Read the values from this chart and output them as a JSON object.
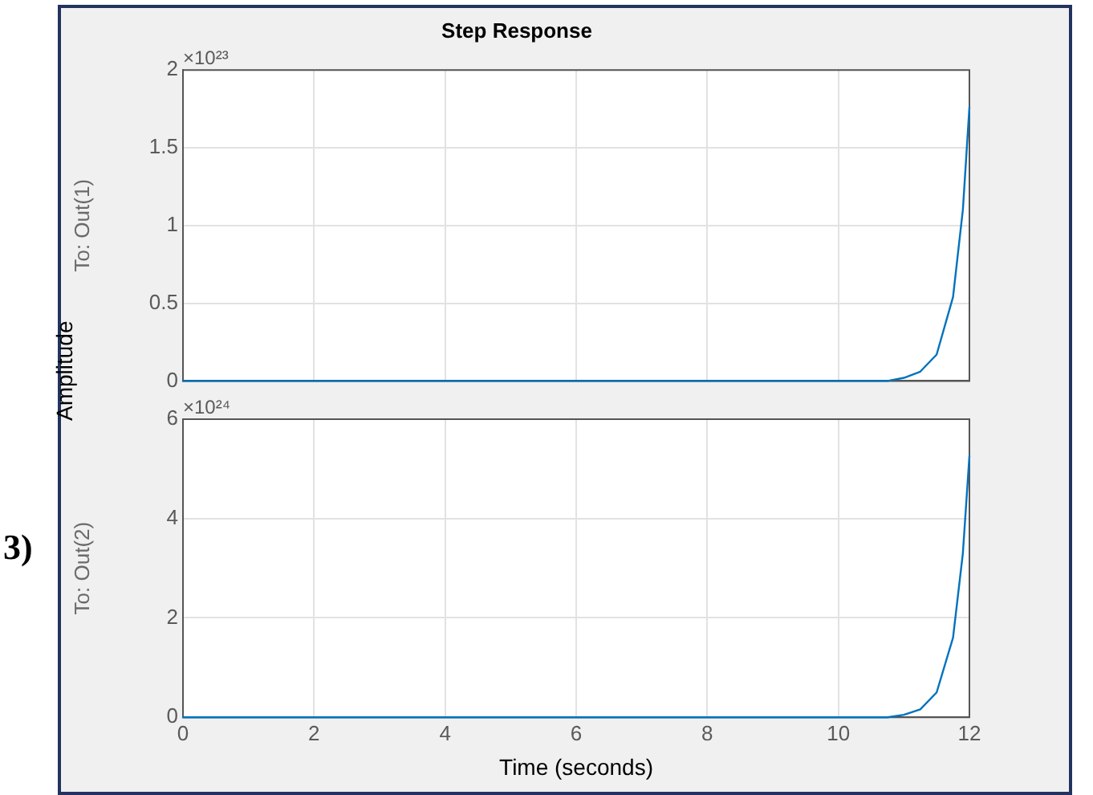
{
  "chart_data": [
    {
      "type": "line",
      "title": "Step Response",
      "ylabel": "To: Out(1)",
      "annotations": [
        "×10²³",
        "Amplitude"
      ],
      "x": [
        0,
        2,
        4,
        6,
        8,
        10,
        10.5,
        10.75,
        11,
        11.25,
        11.5,
        11.75,
        11.9,
        12
      ],
      "series": [
        {
          "color": "#0072bd",
          "values": [
            0,
            0,
            0,
            0,
            0,
            0,
            0,
            0,
            0.02,
            0.06,
            0.17,
            0.54,
            1.1,
            1.76
          ]
        }
      ],
      "xlim": [
        0,
        12
      ],
      "xticks": [
        0,
        2,
        4,
        6,
        8,
        10,
        12
      ],
      "ylim": [
        0,
        2
      ],
      "yticks": [
        0,
        0.5,
        1,
        1.5,
        2
      ],
      "grid": true,
      "tick_labels": "y",
      "legend": false,
      "marker": "none",
      "line_style": "solid"
    },
    {
      "type": "line",
      "xlabel": "Time (seconds)",
      "ylabel": "To: Out(2)",
      "annotations": [
        "×10²⁴",
        "3)"
      ],
      "x": [
        0,
        2,
        4,
        6,
        8,
        10,
        10.5,
        10.75,
        11,
        11.25,
        11.5,
        11.75,
        11.9,
        12
      ],
      "series": [
        {
          "color": "#0072bd",
          "values": [
            0,
            0,
            0,
            0,
            0,
            0,
            0,
            0,
            0.05,
            0.16,
            0.5,
            1.6,
            3.3,
            5.26
          ]
        }
      ],
      "xlim": [
        0,
        12
      ],
      "xticks": [
        0,
        2,
        4,
        6,
        8,
        10,
        12
      ],
      "ylim": [
        0,
        6
      ],
      "yticks": [
        0,
        2,
        4,
        6
      ],
      "grid": true,
      "legend": false,
      "marker": "none",
      "line_style": "solid"
    }
  ]
}
